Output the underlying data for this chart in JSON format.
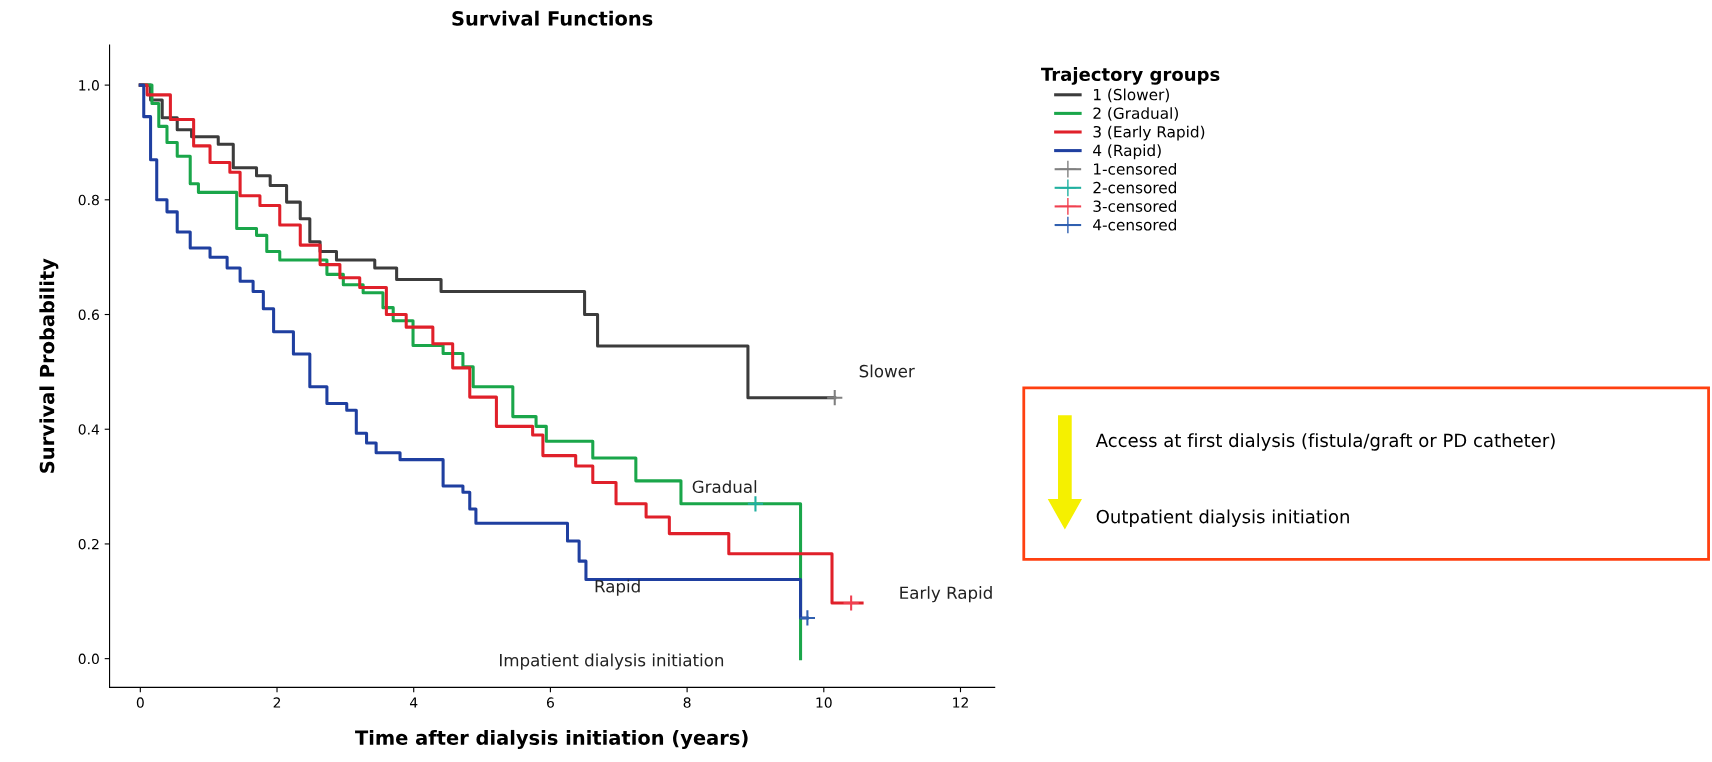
{
  "chart_data": {
    "type": "step",
    "title": "Survival Functions",
    "xlabel": "Time after dialysis initiation (years)",
    "ylabel": "Survival Probability",
    "legend_title": "Trajectory groups",
    "legend": "top right",
    "grid": false,
    "xlim": [
      -0.45,
      12.5
    ],
    "ylim": [
      -0.05,
      1.07
    ],
    "xticks": [
      0,
      2,
      4,
      6,
      8,
      10,
      12
    ],
    "yticks": [
      {
        "value": 0,
        "label": "0.0"
      },
      {
        "value": 0.2,
        "label": "0.2"
      },
      {
        "value": 0.4,
        "label": "0.4"
      },
      {
        "value": 0.6,
        "label": "0.6"
      },
      {
        "value": 0.8,
        "label": "0.8"
      },
      {
        "value": 1,
        "label": "1.0"
      }
    ],
    "series": [
      {
        "name": "1 (Slower)",
        "color": "#3c3c3c",
        "x": [
          0,
          0.15,
          0.32,
          0.54,
          0.75,
          1.14,
          1.36,
          1.7,
          1.9,
          2.14,
          2.34,
          2.48,
          2.63,
          2.87,
          3.43,
          3.75,
          4.4,
          6.5,
          6.69,
          8.89,
          10.16
        ],
        "values": [
          1,
          0.974,
          0.943,
          0.922,
          0.91,
          0.897,
          0.856,
          0.842,
          0.825,
          0.796,
          0.767,
          0.727,
          0.71,
          0.695,
          0.681,
          0.661,
          0.64,
          0.6,
          0.545,
          0.455,
          0.455
        ]
      },
      {
        "name": "2 (Gradual)",
        "color": "#1aa64a",
        "x": [
          0,
          0.17,
          0.27,
          0.39,
          0.54,
          0.73,
          0.85,
          1.41,
          1.7,
          1.85,
          2.04,
          2.73,
          2.97,
          3.26,
          3.55,
          3.7,
          3.99,
          4.43,
          4.72,
          4.87,
          5.45,
          5.79,
          5.94,
          6.62,
          7.25,
          7.91,
          9.66
        ],
        "values": [
          1,
          0.968,
          0.928,
          0.9,
          0.876,
          0.828,
          0.813,
          0.75,
          0.738,
          0.71,
          0.695,
          0.67,
          0.652,
          0.638,
          0.612,
          0.589,
          0.546,
          0.532,
          0.509,
          0.474,
          0.422,
          0.405,
          0.379,
          0.35,
          0.31,
          0.27,
          0.0
        ]
      },
      {
        "name": "3 (Early Rapid)",
        "color": "#e0202a",
        "x": [
          0,
          0.1,
          0.44,
          0.78,
          1.02,
          1.31,
          1.46,
          1.75,
          2.04,
          2.34,
          2.63,
          2.92,
          3.21,
          3.6,
          3.89,
          4.28,
          4.57,
          4.82,
          5.21,
          5.74,
          5.89,
          6.37,
          6.62,
          6.96,
          7.4,
          7.74,
          8.61,
          10.12,
          10.56
        ],
        "values": [
          1,
          0.983,
          0.94,
          0.894,
          0.865,
          0.848,
          0.807,
          0.79,
          0.756,
          0.721,
          0.687,
          0.664,
          0.647,
          0.6,
          0.578,
          0.549,
          0.507,
          0.456,
          0.405,
          0.39,
          0.354,
          0.336,
          0.307,
          0.27,
          0.247,
          0.218,
          0.183,
          0.097,
          0.097
        ]
      },
      {
        "name": "4 (Rapid)",
        "color": "#1f3fa0",
        "x": [
          0,
          0.05,
          0.15,
          0.24,
          0.39,
          0.54,
          0.73,
          1.02,
          1.27,
          1.46,
          1.65,
          1.8,
          1.95,
          2.24,
          2.48,
          2.73,
          3.02,
          3.16,
          3.31,
          3.45,
          3.8,
          4.43,
          4.72,
          4.82,
          4.91,
          6.25,
          6.42,
          6.52,
          9.66,
          9.76
        ],
        "values": [
          1,
          0.945,
          0.87,
          0.8,
          0.779,
          0.744,
          0.716,
          0.7,
          0.681,
          0.658,
          0.64,
          0.61,
          0.57,
          0.531,
          0.474,
          0.445,
          0.433,
          0.393,
          0.376,
          0.359,
          0.347,
          0.301,
          0.29,
          0.261,
          0.236,
          0.205,
          0.17,
          0.138,
          0.071,
          0.071
        ]
      },
      {
        "name": "1-censored",
        "type": "scatter",
        "marker": "cross",
        "color": "#808080",
        "x": [
          10.16
        ],
        "values": [
          0.455
        ]
      },
      {
        "name": "2-censored",
        "type": "scatter",
        "marker": "cross",
        "color": "#20b0a0",
        "x": [
          9.0
        ],
        "values": [
          0.27
        ]
      },
      {
        "name": "3-censored",
        "type": "scatter",
        "marker": "cross",
        "color": "#f04050",
        "x": [
          10.4
        ],
        "values": [
          0.097
        ]
      },
      {
        "name": "4-censored",
        "type": "scatter",
        "marker": "cross",
        "color": "#3060b0",
        "x": [
          9.76
        ],
        "values": [
          0.071
        ]
      }
    ],
    "annotations": [
      "Slower",
      "Gradual",
      "Early Rapid",
      "Rapid",
      "Impatient dialysis initiation",
      "Access at first dialysis (fistula/graft or PD catheter)",
      "Outpatient dialysis initiation"
    ]
  }
}
